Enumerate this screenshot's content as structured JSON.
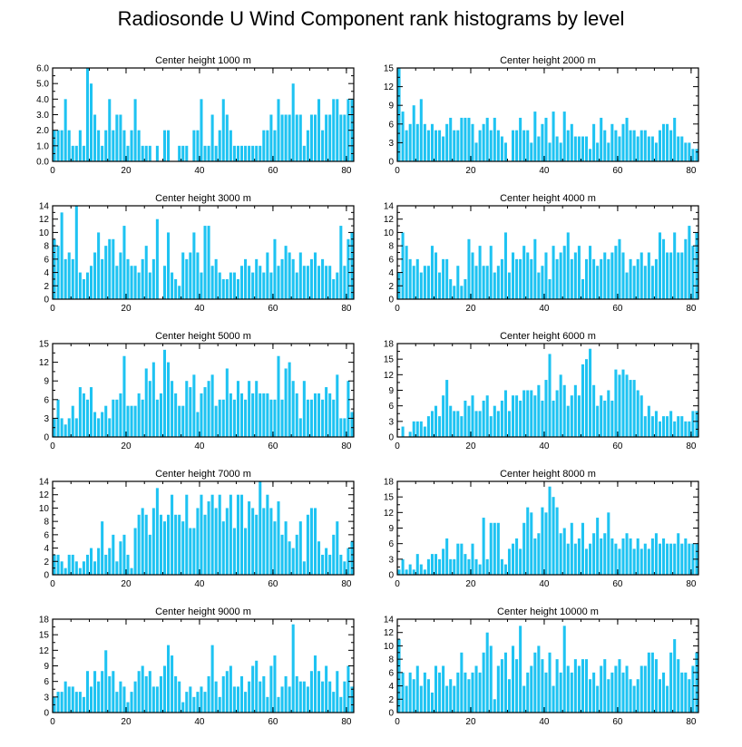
{
  "title": "Radiosonde U Wind Component rank histograms by level",
  "bar_color": "#1ec3f2",
  "chart_data": [
    {
      "type": "bar",
      "title": "Center height 1000 m",
      "xlim": [
        0,
        82
      ],
      "ylim": [
        0,
        6
      ],
      "xticks": [
        0,
        20,
        40,
        60,
        80
      ],
      "yticks": [
        0,
        1,
        2,
        3,
        4,
        5,
        6
      ],
      "ytick_labels": [
        "0.0",
        "1.0",
        "2.0",
        "3.0",
        "4.0",
        "5.0",
        "6.0"
      ],
      "values": [
        2,
        2,
        2,
        4,
        2,
        1,
        1,
        2,
        1,
        6,
        5,
        3,
        2,
        1,
        2,
        4,
        2,
        3,
        3,
        2,
        1,
        2,
        4,
        2,
        1,
        1,
        1,
        0,
        1,
        0,
        2,
        2,
        0,
        0,
        1,
        1,
        1,
        0,
        2,
        2,
        4,
        1,
        1,
        3,
        1,
        2,
        4,
        3,
        2,
        1,
        1,
        1,
        1,
        1,
        1,
        1,
        1,
        2,
        2,
        3,
        2,
        4,
        3,
        3,
        3,
        5,
        3,
        3,
        1,
        2,
        3,
        3,
        4,
        2,
        3,
        3,
        4,
        4,
        3,
        3,
        4,
        4
      ]
    },
    {
      "type": "bar",
      "title": "Center height 2000 m",
      "xlim": [
        0,
        82
      ],
      "ylim": [
        0,
        15
      ],
      "xticks": [
        0,
        20,
        40,
        60,
        80
      ],
      "yticks": [
        0,
        3,
        6,
        9,
        12,
        15
      ],
      "ytick_labels": [
        "0",
        "3",
        "6",
        "9",
        "12",
        "15"
      ],
      "values": [
        15,
        8,
        5,
        6,
        9,
        6,
        10,
        6,
        5,
        6,
        5,
        5,
        4,
        6,
        7,
        5,
        5,
        7,
        7,
        7,
        6,
        3,
        5,
        6,
        7,
        5,
        7,
        5,
        4,
        3,
        0,
        5,
        5,
        7,
        5,
        5,
        3,
        8,
        4,
        6,
        7,
        3,
        8,
        4,
        3,
        8,
        5,
        6,
        4,
        4,
        4,
        4,
        2,
        6,
        3,
        7,
        5,
        3,
        6,
        5,
        4,
        6,
        7,
        5,
        5,
        4,
        5,
        5,
        4,
        4,
        3,
        5,
        6,
        6,
        5,
        7,
        4,
        4,
        3,
        3,
        2,
        2
      ]
    },
    {
      "type": "bar",
      "title": "Center height 3000 m",
      "xlim": [
        0,
        82
      ],
      "ylim": [
        0,
        14
      ],
      "xticks": [
        0,
        20,
        40,
        60,
        80
      ],
      "yticks": [
        0,
        2,
        4,
        6,
        8,
        10,
        12,
        14
      ],
      "ytick_labels": [
        "0",
        "2",
        "4",
        "6",
        "8",
        "10",
        "12",
        "14"
      ],
      "values": [
        9,
        8,
        13,
        6,
        7,
        6,
        14,
        4,
        3,
        4,
        5,
        7,
        10,
        6,
        8,
        9,
        9,
        5,
        7,
        11,
        6,
        5,
        5,
        4,
        6,
        8,
        4,
        6,
        12,
        0,
        5,
        10,
        4,
        3,
        2,
        7,
        6,
        7,
        10,
        7,
        4,
        11,
        11,
        5,
        6,
        4,
        3,
        3,
        4,
        4,
        3,
        5,
        6,
        5,
        4,
        6,
        5,
        4,
        7,
        4,
        9,
        5,
        6,
        8,
        7,
        6,
        4,
        7,
        5,
        5,
        6,
        7,
        5,
        6,
        5,
        5,
        3,
        4,
        11,
        5,
        9,
        10
      ]
    },
    {
      "type": "bar",
      "title": "Center height 4000 m",
      "xlim": [
        0,
        82
      ],
      "ylim": [
        0,
        14
      ],
      "xticks": [
        0,
        20,
        40,
        60,
        80
      ],
      "yticks": [
        0,
        2,
        4,
        6,
        8,
        10,
        12,
        14
      ],
      "ytick_labels": [
        "0",
        "2",
        "4",
        "6",
        "8",
        "10",
        "12",
        "14"
      ],
      "values": [
        4,
        10,
        8,
        6,
        5,
        6,
        4,
        5,
        5,
        8,
        7,
        4,
        6,
        6,
        3,
        2,
        5,
        2,
        3,
        9,
        7,
        5,
        8,
        5,
        5,
        8,
        4,
        5,
        6,
        10,
        4,
        7,
        6,
        6,
        8,
        7,
        6,
        9,
        4,
        5,
        7,
        3,
        8,
        6,
        7,
        8,
        10,
        6,
        7,
        8,
        3,
        6,
        8,
        6,
        5,
        6,
        7,
        6,
        7,
        8,
        9,
        7,
        4,
        6,
        5,
        6,
        7,
        5,
        7,
        5,
        6,
        10,
        9,
        7,
        7,
        10,
        7,
        7,
        9,
        11,
        8,
        10
      ]
    },
    {
      "type": "bar",
      "title": "Center height 5000 m",
      "xlim": [
        0,
        82
      ],
      "ylim": [
        0,
        15
      ],
      "xticks": [
        0,
        20,
        40,
        60,
        80
      ],
      "yticks": [
        0,
        3,
        6,
        9,
        12,
        15
      ],
      "ytick_labels": [
        "0",
        "3",
        "6",
        "9",
        "12",
        "15"
      ],
      "values": [
        3,
        6,
        3,
        2,
        3,
        5,
        3,
        8,
        7,
        6,
        8,
        4,
        3,
        4,
        5,
        3,
        6,
        6,
        7,
        13,
        5,
        5,
        5,
        7,
        6,
        11,
        9,
        12,
        6,
        7,
        14,
        12,
        9,
        7,
        5,
        5,
        9,
        8,
        10,
        4,
        7,
        8,
        9,
        10,
        5,
        6,
        6,
        11,
        7,
        6,
        9,
        7,
        6,
        9,
        7,
        9,
        7,
        7,
        7,
        6,
        6,
        13,
        6,
        11,
        12,
        9,
        7,
        3,
        9,
        6,
        6,
        7,
        7,
        6,
        8,
        7,
        6,
        10,
        3,
        3,
        9,
        4
      ]
    },
    {
      "type": "bar",
      "title": "Center height 6000 m",
      "xlim": [
        0,
        82
      ],
      "ylim": [
        0,
        18
      ],
      "xticks": [
        0,
        20,
        40,
        60,
        80
      ],
      "yticks": [
        0,
        3,
        6,
        9,
        12,
        15,
        18
      ],
      "ytick_labels": [
        "0",
        "3",
        "6",
        "9",
        "12",
        "15",
        "18"
      ],
      "values": [
        0,
        2,
        0,
        1,
        3,
        3,
        3,
        2,
        4,
        5,
        6,
        4,
        8,
        11,
        6,
        5,
        5,
        4,
        7,
        6,
        8,
        5,
        5,
        7,
        8,
        4,
        6,
        5,
        7,
        9,
        5,
        8,
        8,
        7,
        9,
        9,
        9,
        8,
        10,
        7,
        11,
        16,
        7,
        9,
        12,
        10,
        6,
        8,
        10,
        8,
        14,
        15,
        17,
        10,
        6,
        8,
        7,
        9,
        7,
        13,
        12,
        13,
        12,
        11,
        11,
        9,
        8,
        4,
        6,
        4,
        5,
        3,
        4,
        4,
        5,
        3,
        4,
        4,
        3,
        3,
        5,
        5
      ]
    },
    {
      "type": "bar",
      "title": "Center height 7000 m",
      "xlim": [
        0,
        82
      ],
      "ylim": [
        0,
        14
      ],
      "xticks": [
        0,
        20,
        40,
        60,
        80
      ],
      "yticks": [
        0,
        2,
        4,
        6,
        8,
        10,
        12,
        14
      ],
      "ytick_labels": [
        "0",
        "2",
        "4",
        "6",
        "8",
        "10",
        "12",
        "14"
      ],
      "values": [
        3,
        3,
        2,
        1,
        3,
        3,
        2,
        1,
        2,
        3,
        4,
        2,
        4,
        8,
        3,
        4,
        6,
        2,
        5,
        6,
        3,
        1,
        7,
        9,
        10,
        9,
        6,
        10,
        13,
        9,
        8,
        9,
        12,
        9,
        9,
        8,
        12,
        7,
        7,
        10,
        12,
        9,
        11,
        12,
        10,
        12,
        8,
        10,
        12,
        7,
        12,
        12,
        7,
        11,
        10,
        9,
        14,
        10,
        12,
        10,
        8,
        11,
        6,
        8,
        5,
        4,
        6,
        8,
        2,
        9,
        10,
        10,
        5,
        3,
        4,
        3,
        6,
        8,
        3,
        2,
        4,
        5
      ]
    },
    {
      "type": "bar",
      "title": "Center height 8000 m",
      "xlim": [
        0,
        82
      ],
      "ylim": [
        0,
        18
      ],
      "xticks": [
        0,
        20,
        40,
        60,
        80
      ],
      "yticks": [
        0,
        3,
        6,
        9,
        12,
        15,
        18
      ],
      "ytick_labels": [
        "0",
        "3",
        "6",
        "9",
        "12",
        "15",
        "18"
      ],
      "values": [
        1,
        3,
        1,
        2,
        1,
        4,
        2,
        1,
        3,
        4,
        4,
        3,
        5,
        7,
        3,
        3,
        6,
        6,
        4,
        3,
        6,
        3,
        2,
        11,
        3,
        10,
        10,
        10,
        3,
        2,
        5,
        6,
        7,
        5,
        10,
        13,
        12,
        7,
        8,
        13,
        12,
        17,
        15,
        13,
        8,
        9,
        6,
        10,
        6,
        7,
        10,
        5,
        6,
        8,
        11,
        7,
        8,
        12,
        7,
        6,
        5,
        7,
        8,
        7,
        5,
        7,
        5,
        6,
        5,
        7,
        8,
        6,
        7,
        6,
        6,
        6,
        8,
        6,
        7,
        6,
        6,
        6
      ]
    },
    {
      "type": "bar",
      "title": "Center height 9000 m",
      "xlim": [
        0,
        82
      ],
      "ylim": [
        0,
        18
      ],
      "xticks": [
        0,
        20,
        40,
        60,
        80
      ],
      "yticks": [
        0,
        3,
        6,
        9,
        12,
        15,
        18
      ],
      "ytick_labels": [
        "0",
        "3",
        "6",
        "9",
        "12",
        "15",
        "18"
      ],
      "values": [
        3,
        4,
        4,
        6,
        5,
        5,
        4,
        4,
        3,
        8,
        5,
        8,
        6,
        8,
        12,
        7,
        8,
        4,
        6,
        5,
        2,
        4,
        6,
        8,
        9,
        7,
        8,
        5,
        5,
        7,
        9,
        13,
        11,
        7,
        6,
        2,
        4,
        5,
        3,
        4,
        5,
        4,
        7,
        13,
        6,
        3,
        7,
        8,
        9,
        5,
        5,
        7,
        4,
        6,
        9,
        10,
        6,
        7,
        3,
        9,
        11,
        3,
        5,
        7,
        5,
        17,
        7,
        6,
        6,
        5,
        8,
        11,
        8,
        6,
        9,
        6,
        4,
        8,
        3,
        6,
        9,
        5
      ]
    },
    {
      "type": "bar",
      "title": "Center height 10000 m",
      "xlim": [
        0,
        82
      ],
      "ylim": [
        0,
        14
      ],
      "xticks": [
        0,
        20,
        40,
        60,
        80
      ],
      "yticks": [
        0,
        2,
        4,
        6,
        8,
        10,
        12,
        14
      ],
      "ytick_labels": [
        "0",
        "2",
        "4",
        "6",
        "8",
        "10",
        "12",
        "14"
      ],
      "values": [
        11,
        6,
        4,
        6,
        5,
        7,
        4,
        6,
        5,
        3,
        7,
        6,
        7,
        4,
        5,
        4,
        6,
        9,
        6,
        5,
        6,
        7,
        6,
        9,
        12,
        10,
        2,
        7,
        8,
        9,
        5,
        10,
        8,
        13,
        4,
        6,
        7,
        9,
        10,
        8,
        6,
        9,
        4,
        8,
        6,
        13,
        7,
        6,
        8,
        7,
        8,
        8,
        5,
        6,
        4,
        7,
        8,
        5,
        6,
        7,
        8,
        6,
        7,
        5,
        4,
        5,
        7,
        7,
        9,
        9,
        8,
        5,
        6,
        4,
        9,
        11,
        8,
        6,
        6,
        5,
        7,
        9
      ]
    }
  ]
}
